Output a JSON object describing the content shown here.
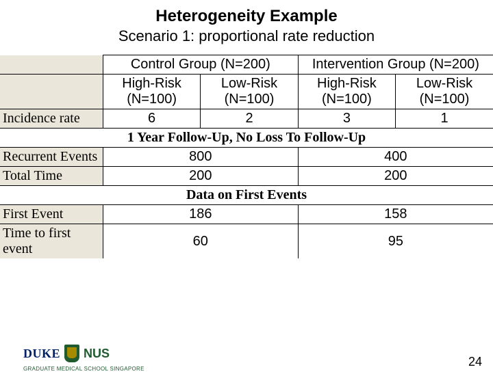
{
  "title": "Heterogeneity Example",
  "subtitle": "Scenario 1: proportional rate reduction",
  "columns": {
    "group_control": "Control Group (N=200)",
    "group_intervention": "Intervention Group (N=200)",
    "high_risk": "High-Risk (N=100)",
    "low_risk": "Low-Risk (N=100)"
  },
  "rows": {
    "incidence": {
      "label": "Incidence rate",
      "values": [
        "6",
        "2",
        "3",
        "1"
      ]
    },
    "section1": "1 Year Follow-Up, No Loss To Follow-Up",
    "recurrent": {
      "label": "Recurrent Events",
      "values_merged": [
        "800",
        "400"
      ]
    },
    "totaltime": {
      "label": "Total Time",
      "values_merged": [
        "200",
        "200"
      ]
    },
    "section2": "Data on First Events",
    "firstevent": {
      "label": "First Event",
      "values_merged": [
        "186",
        "158"
      ]
    },
    "timetofirst": {
      "label": "Time to first event",
      "values_merged": [
        "60",
        "95"
      ]
    }
  },
  "logo": {
    "duke": "DUKE",
    "nus": "NUS",
    "sub": "GRADUATE MEDICAL SCHOOL SINGAPORE"
  },
  "page_number": "24",
  "colors": {
    "rowlabel_bg": "#eae6d9",
    "duke_blue": "#012169",
    "nus_green": "#1f5b2f",
    "shield_gold": "#a68b00"
  }
}
